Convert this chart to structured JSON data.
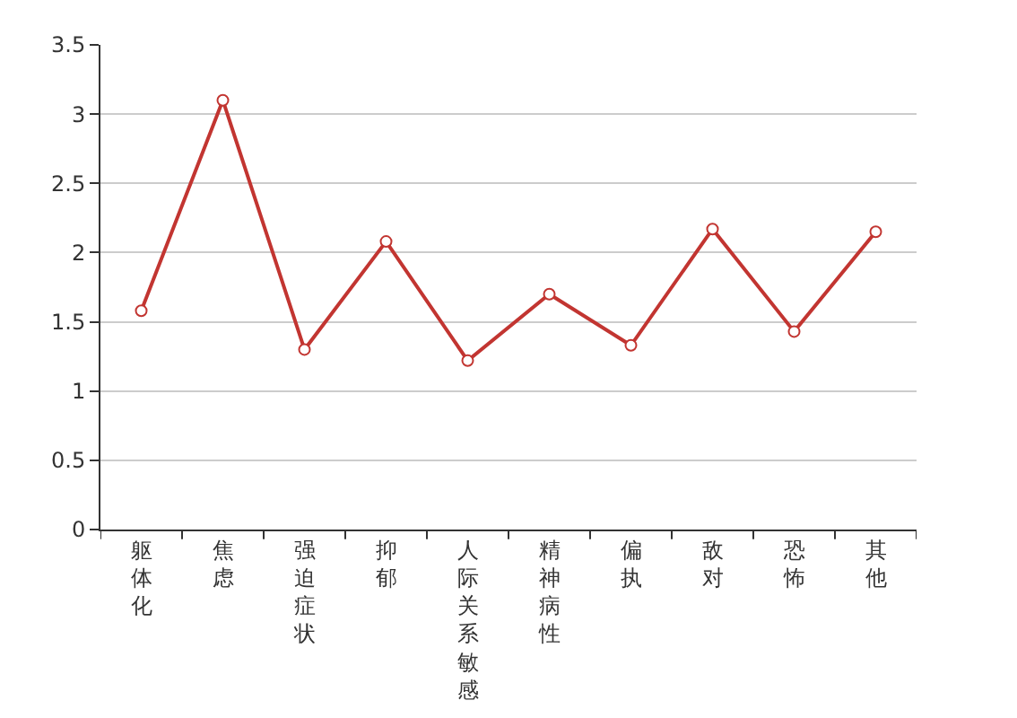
{
  "chart_data": {
    "type": "line",
    "categories": [
      "躯体化",
      "焦虑",
      "强迫症状",
      "抑郁",
      "人际关系敏感",
      "精神病性",
      "偏执",
      "敌对",
      "恐怖",
      "其他"
    ],
    "values": [
      1.58,
      3.1,
      1.3,
      2.08,
      1.22,
      1.7,
      1.33,
      2.17,
      1.43,
      2.15
    ],
    "color": "#c23531",
    "ylim": [
      0,
      3.5
    ],
    "yticks": [
      0,
      0.5,
      1,
      1.5,
      2,
      2.5,
      3,
      3.5
    ],
    "grid": "y",
    "marker": "circle",
    "line_style": "solid"
  }
}
